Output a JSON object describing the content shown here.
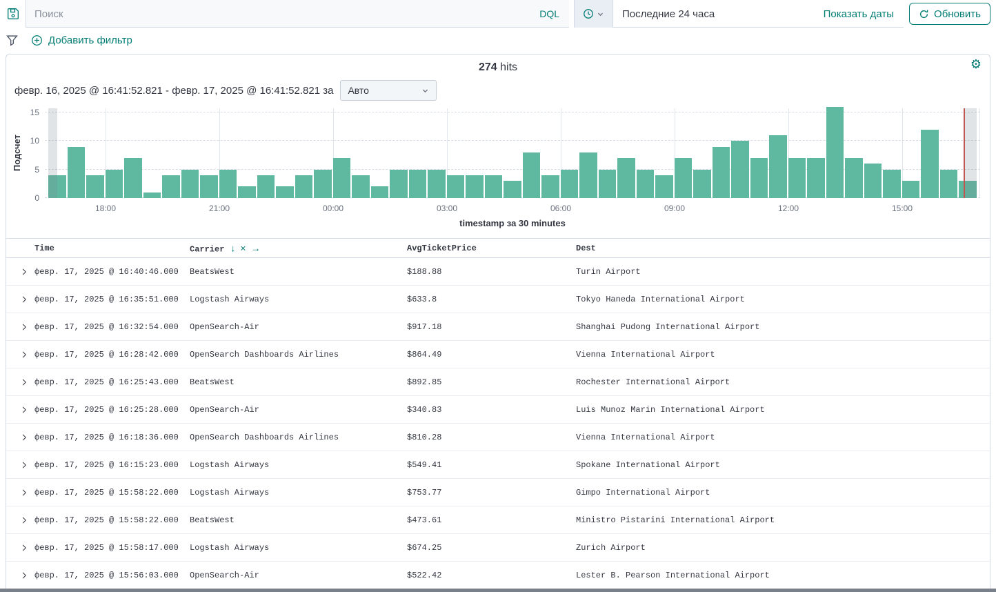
{
  "query_bar": {
    "search_placeholder": "Поиск",
    "language_button": "DQL",
    "time_value": "Последние 24 часа",
    "show_dates_button": "Показать даты",
    "refresh_button": "Обновить"
  },
  "filter_bar": {
    "add_filter": "Добавить фильтр"
  },
  "results_header": {
    "hits_count": "274",
    "hits_label": "hits"
  },
  "time_range_bar": {
    "range_text": "февр. 16, 2025 @ 16:41:52.821 - февр. 17, 2025 @ 16:41:52.821 за",
    "interval_select_value": "Авто"
  },
  "chart_data": {
    "type": "bar",
    "title": "",
    "ylabel": "Подсчет",
    "xlabel": "timestamp за 30 minutes",
    "ylim": [
      0,
      16
    ],
    "yticks": [
      0,
      5,
      10,
      15
    ],
    "x_tick_labels": [
      "18:00",
      "21:00",
      "00:00",
      "03:00",
      "06:00",
      "09:00",
      "12:00",
      "15:00"
    ],
    "bucket_interval": "30 minutes",
    "values": [
      4,
      9,
      4,
      5,
      7,
      1,
      4,
      5,
      4,
      5,
      2,
      4,
      2,
      4,
      5,
      7,
      4,
      2,
      5,
      5,
      5,
      4,
      4,
      4,
      3,
      8,
      4,
      5,
      8,
      5,
      7,
      5,
      4,
      7,
      5,
      9,
      10,
      7,
      11,
      7,
      7,
      16,
      7,
      6,
      5,
      3,
      12,
      5,
      3
    ],
    "total_hits": 274,
    "grid": true,
    "legend": "none",
    "annotations": {
      "current_time_marker": true,
      "out_of_range_shading_left": true,
      "out_of_range_shading_right": true
    },
    "colors": {
      "bar": "#5FB9A0",
      "current_time_marker": "#C0564F"
    }
  },
  "table": {
    "columns": [
      "Time",
      "Carrier",
      "AvgTicketPrice",
      "Dest"
    ],
    "carrier_header_icons": [
      {
        "name": "sort-descending-icon",
        "glyph": "↓"
      },
      {
        "name": "remove-column-icon",
        "glyph": "×"
      },
      {
        "name": "move-right-icon",
        "glyph": "→"
      }
    ],
    "rows": [
      {
        "time": "февр. 17, 2025 @ 16:40:46.000",
        "carrier": "BeatsWest",
        "avg_ticket_price": "$188.88",
        "dest": "Turin Airport"
      },
      {
        "time": "февр. 17, 2025 @ 16:35:51.000",
        "carrier": "Logstash Airways",
        "avg_ticket_price": "$633.8",
        "dest": "Tokyo Haneda International Airport"
      },
      {
        "time": "февр. 17, 2025 @ 16:32:54.000",
        "carrier": "OpenSearch-Air",
        "avg_ticket_price": "$917.18",
        "dest": "Shanghai Pudong International Airport"
      },
      {
        "time": "февр. 17, 2025 @ 16:28:42.000",
        "carrier": "OpenSearch Dashboards Airlines",
        "avg_ticket_price": "$864.49",
        "dest": "Vienna International Airport"
      },
      {
        "time": "февр. 17, 2025 @ 16:25:43.000",
        "carrier": "BeatsWest",
        "avg_ticket_price": "$892.85",
        "dest": "Rochester International Airport"
      },
      {
        "time": "февр. 17, 2025 @ 16:25:28.000",
        "carrier": "OpenSearch-Air",
        "avg_ticket_price": "$340.83",
        "dest": "Luis Munoz Marin International Airport"
      },
      {
        "time": "февр. 17, 2025 @ 16:18:36.000",
        "carrier": "OpenSearch Dashboards Airlines",
        "avg_ticket_price": "$810.28",
        "dest": "Vienna International Airport"
      },
      {
        "time": "февр. 17, 2025 @ 16:15:23.000",
        "carrier": "Logstash Airways",
        "avg_ticket_price": "$549.41",
        "dest": "Spokane International Airport"
      },
      {
        "time": "февр. 17, 2025 @ 15:58:22.000",
        "carrier": "Logstash Airways",
        "avg_ticket_price": "$753.77",
        "dest": "Gimpo International Airport"
      },
      {
        "time": "февр. 17, 2025 @ 15:58:22.000",
        "carrier": "BeatsWest",
        "avg_ticket_price": "$473.61",
        "dest": "Ministro Pistarini International Airport"
      },
      {
        "time": "февр. 17, 2025 @ 15:58:17.000",
        "carrier": "Logstash Airways",
        "avg_ticket_price": "$674.25",
        "dest": "Zurich Airport"
      },
      {
        "time": "февр. 17, 2025 @ 15:56:03.000",
        "carrier": "OpenSearch-Air",
        "avg_ticket_price": "$522.42",
        "dest": "Lester B. Pearson International Airport"
      }
    ]
  },
  "colors": {
    "accent_teal": "#017D73",
    "text": "#343741",
    "subdued": "#69707D",
    "border": "#D3DAE6",
    "bar": "#5FB9A0",
    "current_time_marker": "#C0564F"
  }
}
